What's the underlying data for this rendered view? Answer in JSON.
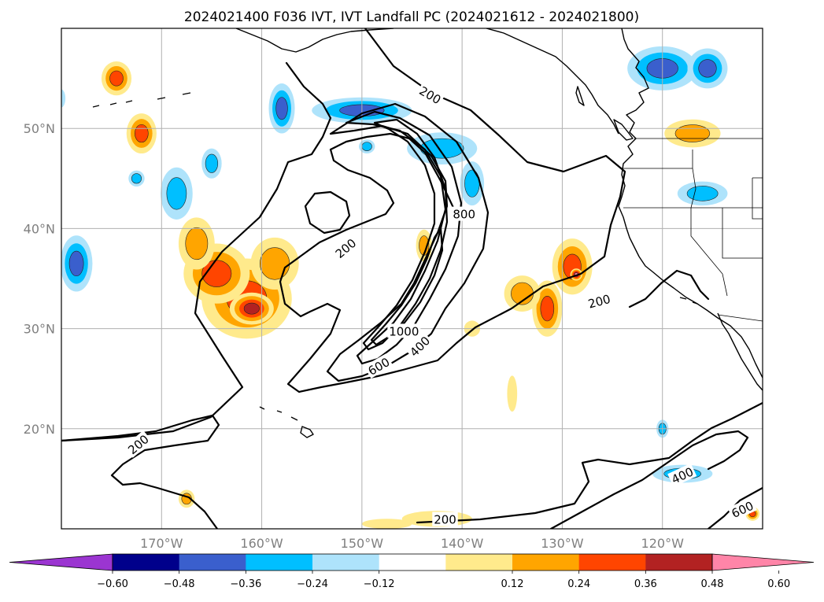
{
  "chart_data": {
    "type": "heatmap",
    "title": "2024021400 F036 IVT, IVT Landfall PC (2024021612 - 2024021800)",
    "x_axis": {
      "range_deg": [
        -180,
        -110
      ],
      "ticks": [
        {
          "value": -170,
          "label": "170°W"
        },
        {
          "value": -160,
          "label": "160°W"
        },
        {
          "value": -150,
          "label": "150°W"
        },
        {
          "value": -140,
          "label": "140°W"
        },
        {
          "value": -130,
          "label": "130°W"
        },
        {
          "value": -120,
          "label": "120°W"
        }
      ]
    },
    "y_axis": {
      "range_deg": [
        10,
        60
      ],
      "ticks": [
        {
          "value": 20,
          "label": "20°N"
        },
        {
          "value": 30,
          "label": "30°N"
        },
        {
          "value": 40,
          "label": "40°N"
        },
        {
          "value": 50,
          "label": "50°N"
        }
      ]
    },
    "grid": true,
    "colorbar": {
      "orientation": "horizontal",
      "extend": "both",
      "levels": [
        -0.6,
        -0.48,
        -0.36,
        -0.24,
        -0.12,
        0.12,
        0.24,
        0.36,
        0.48,
        0.6
      ],
      "tick_labels": [
        "−0.60",
        "−0.48",
        "−0.36",
        "−0.24",
        "−0.12",
        "0.12",
        "0.24",
        "0.36",
        "0.48",
        "0.60"
      ],
      "colors": [
        "#9b35d1",
        "#00008b",
        "#3a5fcd",
        "#00bfff",
        "#aee3fb",
        "#ffffff",
        "#ffea8c",
        "#ffa500",
        "#ff4500",
        "#b22222",
        "#ff85a8"
      ]
    },
    "ivt_contours": {
      "levels": [
        200,
        400,
        600,
        800,
        1000
      ],
      "labels": [
        {
          "text": "200",
          "lon": -143.2,
          "lat": 53.3,
          "rotation": 30
        },
        {
          "text": "200",
          "lon": -151.6,
          "lat": 38.0,
          "rotation": -40
        },
        {
          "text": "200",
          "lon": -126.3,
          "lat": 32.7,
          "rotation": -15
        },
        {
          "text": "200",
          "lon": -172.3,
          "lat": 18.4,
          "rotation": -40
        },
        {
          "text": "200",
          "lon": -141.7,
          "lat": 10.9,
          "rotation": 0
        },
        {
          "text": "400",
          "lon": -118.0,
          "lat": 15.3,
          "rotation": -25
        },
        {
          "text": "400",
          "lon": -144.2,
          "lat": 28.2,
          "rotation": -45
        },
        {
          "text": "600",
          "lon": -112.0,
          "lat": 11.9,
          "rotation": -25
        },
        {
          "text": "600",
          "lon": -148.3,
          "lat": 26.2,
          "rotation": -30
        },
        {
          "text": "800",
          "lon": -139.8,
          "lat": 41.4,
          "rotation": 0
        },
        {
          "text": "1000",
          "lon": -145.8,
          "lat": 29.7,
          "rotation": 0
        }
      ]
    },
    "pc_regions": [
      {
        "lon": -161.5,
        "lat": 33.0,
        "rx": 4.5,
        "ry": 4.0,
        "value": 0.38
      },
      {
        "lon": -164.5,
        "lat": 35.5,
        "rx": 3.3,
        "ry": 3.0,
        "value": 0.4
      },
      {
        "lon": -166.5,
        "lat": 38.5,
        "rx": 1.8,
        "ry": 2.6,
        "value": 0.28
      },
      {
        "lon": -158.7,
        "lat": 36.5,
        "rx": 2.4,
        "ry": 2.6,
        "value": 0.33
      },
      {
        "lon": -161.0,
        "lat": 32.0,
        "rx": 2.2,
        "ry": 1.6,
        "value": 0.5
      },
      {
        "lon": -174.5,
        "lat": 55.0,
        "rx": 1.5,
        "ry": 1.7,
        "value": 0.38
      },
      {
        "lon": -172.0,
        "lat": 49.5,
        "rx": 1.5,
        "ry": 2.0,
        "value": 0.4
      },
      {
        "lon": -129.0,
        "lat": 36.2,
        "rx": 2.0,
        "ry": 2.8,
        "value": 0.42
      },
      {
        "lon": -128.6,
        "lat": 35.4,
        "rx": 0.6,
        "ry": 0.6,
        "value": 0.62
      },
      {
        "lon": -131.5,
        "lat": 32.0,
        "rx": 1.5,
        "ry": 2.8,
        "value": 0.38
      },
      {
        "lon": -134.0,
        "lat": 33.5,
        "rx": 1.8,
        "ry": 1.8,
        "value": 0.28
      },
      {
        "lon": -117.0,
        "lat": 49.5,
        "rx": 2.8,
        "ry": 1.4,
        "value": 0.28
      },
      {
        "lon": -143.8,
        "lat": 38.3,
        "rx": 0.8,
        "ry": 1.6,
        "value": 0.28
      },
      {
        "lon": -135.0,
        "lat": 23.5,
        "rx": 0.5,
        "ry": 1.8,
        "value": 0.2
      },
      {
        "lon": -139.0,
        "lat": 30.0,
        "rx": 0.8,
        "ry": 0.8,
        "value": 0.2
      },
      {
        "lon": -167.5,
        "lat": 13.0,
        "rx": 0.8,
        "ry": 0.9,
        "value": 0.28
      },
      {
        "lon": -111.0,
        "lat": 11.5,
        "rx": 0.7,
        "ry": 0.7,
        "value": 0.38
      },
      {
        "lon": -142.5,
        "lat": 11.0,
        "rx": 3.5,
        "ry": 0.8,
        "value": 0.2
      },
      {
        "lon": -147.5,
        "lat": 10.5,
        "rx": 2.5,
        "ry": 0.5,
        "value": 0.2
      },
      {
        "lon": -120.0,
        "lat": 56.0,
        "rx": 3.5,
        "ry": 2.2,
        "value": -0.4
      },
      {
        "lon": -115.5,
        "lat": 56.0,
        "rx": 2.0,
        "ry": 2.0,
        "value": -0.42
      },
      {
        "lon": -158.0,
        "lat": 52.0,
        "rx": 1.3,
        "ry": 2.5,
        "value": -0.38
      },
      {
        "lon": -150.0,
        "lat": 51.8,
        "rx": 5.0,
        "ry": 1.3,
        "value": -0.38
      },
      {
        "lon": -142.0,
        "lat": 48.0,
        "rx": 3.5,
        "ry": 1.6,
        "value": -0.3
      },
      {
        "lon": -139.0,
        "lat": 44.5,
        "rx": 1.2,
        "ry": 2.2,
        "value": -0.3
      },
      {
        "lon": -178.5,
        "lat": 36.5,
        "rx": 1.6,
        "ry": 2.8,
        "value": -0.38
      },
      {
        "lon": -168.5,
        "lat": 43.5,
        "rx": 1.6,
        "ry": 2.6,
        "value": -0.3
      },
      {
        "lon": -165.0,
        "lat": 46.5,
        "rx": 1.0,
        "ry": 1.5,
        "value": -0.27
      },
      {
        "lon": -116.0,
        "lat": 43.5,
        "rx": 2.5,
        "ry": 1.2,
        "value": -0.3
      },
      {
        "lon": -118.0,
        "lat": 15.5,
        "rx": 3.0,
        "ry": 0.9,
        "value": -0.3
      },
      {
        "lon": -120.0,
        "lat": 20.0,
        "rx": 0.6,
        "ry": 0.9,
        "value": -0.3
      },
      {
        "lon": -172.5,
        "lat": 45.0,
        "rx": 0.8,
        "ry": 0.8,
        "value": -0.25
      },
      {
        "lon": -149.5,
        "lat": 48.2,
        "rx": 0.8,
        "ry": 0.7,
        "value": -0.25
      },
      {
        "lon": -180.0,
        "lat": 53.0,
        "rx": 0.4,
        "ry": 0.9,
        "value": -0.22
      }
    ]
  }
}
